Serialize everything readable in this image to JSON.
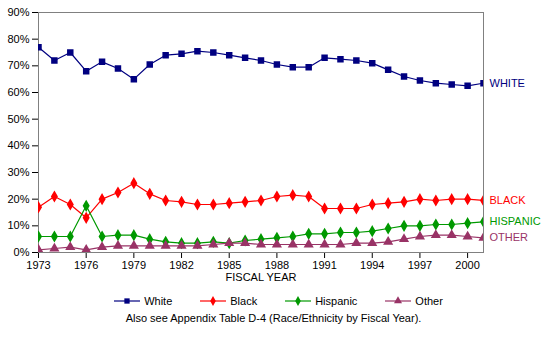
{
  "chart_data": {
    "type": "line",
    "xlabel": "FISCAL YEAR",
    "caption": "Also see Appendix Table D-4 (Race/Ethnicity by Fiscal Year).",
    "x": [
      1973,
      1974,
      1975,
      1976,
      1977,
      1978,
      1979,
      1980,
      1981,
      1982,
      1983,
      1984,
      1985,
      1986,
      1987,
      1988,
      1989,
      1990,
      1991,
      1992,
      1993,
      1994,
      1995,
      1996,
      1997,
      1998,
      1999,
      2000,
      2001
    ],
    "xlim": [
      1973,
      2001
    ],
    "xticks": [
      1973,
      1976,
      1979,
      1982,
      1985,
      1988,
      1991,
      1994,
      1997,
      2000
    ],
    "ylim": [
      0,
      90
    ],
    "yticks": [
      {
        "value": 0,
        "label": "0%"
      },
      {
        "value": 10,
        "label": "10%"
      },
      {
        "value": 20,
        "label": "20%"
      },
      {
        "value": 30,
        "label": "30%"
      },
      {
        "value": 40,
        "label": "40%"
      },
      {
        "value": 50,
        "label": "50%"
      },
      {
        "value": 60,
        "label": "60%"
      },
      {
        "value": 70,
        "label": "70%"
      },
      {
        "value": 80,
        "label": "80%"
      },
      {
        "value": 90,
        "label": "90%"
      }
    ],
    "grid": false,
    "legend": "bottom",
    "series": [
      {
        "name": "White",
        "end_label": "WHITE",
        "color": "#000080",
        "marker": "square",
        "values": [
          77,
          72,
          75,
          68,
          71.5,
          69,
          65,
          70.5,
          74,
          74.5,
          75.5,
          75,
          74,
          73,
          72,
          70.5,
          69.5,
          69.5,
          73,
          72.5,
          72,
          71,
          68.5,
          66,
          64.5,
          63.5,
          63,
          62.5,
          63.5
        ]
      },
      {
        "name": "Black",
        "end_label": "BLACK",
        "color": "#ff0000",
        "marker": "diamond",
        "values": [
          17,
          21,
          18,
          13,
          20,
          22.5,
          26,
          22,
          19.5,
          19,
          18,
          18,
          18.5,
          19,
          19.5,
          21,
          21.5,
          21,
          16.5,
          16.5,
          16.5,
          18,
          18.5,
          19,
          20,
          19.5,
          20,
          20,
          19.5
        ]
      },
      {
        "name": "Hispanic",
        "end_label": "HISPANIC",
        "color": "#009900",
        "marker": "diamond",
        "values": [
          6,
          6,
          6,
          17.5,
          6,
          6.5,
          6.5,
          5,
          4,
          3.5,
          3.5,
          4,
          3.5,
          4.5,
          5,
          5.5,
          6,
          7,
          7,
          7.5,
          7.5,
          8,
          9,
          10,
          10,
          10.5,
          10.5,
          11,
          11.5
        ]
      },
      {
        "name": "Other",
        "end_label": "OTHER",
        "color": "#993366",
        "marker": "triangle",
        "values": [
          1,
          1.5,
          2,
          1,
          2,
          2.5,
          2.5,
          2.5,
          2.5,
          2.5,
          2.5,
          3,
          3.5,
          3.5,
          3,
          3,
          3,
          3,
          3,
          3,
          3.5,
          3.5,
          4,
          5,
          6,
          6.5,
          6.5,
          6,
          5.5
        ]
      }
    ]
  }
}
